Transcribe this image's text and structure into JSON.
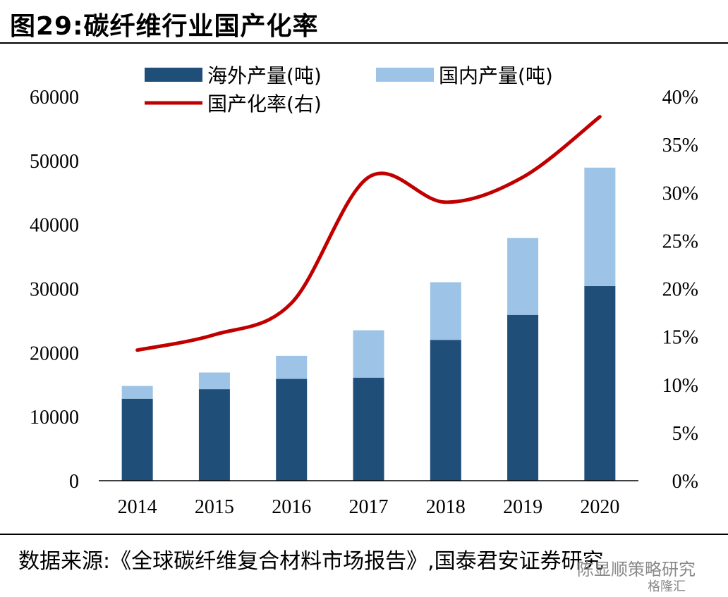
{
  "figure": {
    "title": "图29:碳纤维行业国产化率",
    "source": "数据来源:《全球碳纤维复合材料市场报告》,国泰君安证券研究"
  },
  "watermark": {
    "account": "陈显顺策略研究",
    "brand": "格隆汇"
  },
  "chart_data": {
    "type": "bar",
    "stacked": true,
    "categories": [
      "2014",
      "2015",
      "2016",
      "2017",
      "2018",
      "2019",
      "2020"
    ],
    "series": [
      {
        "name": "海外产量(吨)",
        "type": "bar",
        "axis": "left",
        "color": "#1f4e79",
        "values": [
          12800,
          14300,
          15900,
          16100,
          22000,
          25900,
          30400
        ]
      },
      {
        "name": "国内产量(吨)",
        "type": "bar",
        "axis": "left",
        "color": "#9dc3e6",
        "values": [
          2000,
          2600,
          3600,
          7400,
          9000,
          12000,
          18500
        ]
      },
      {
        "name": "国产化率(右)",
        "type": "line",
        "axis": "right",
        "color": "#c00000",
        "values": [
          0.136,
          0.152,
          0.185,
          0.316,
          0.29,
          0.316,
          0.379
        ]
      }
    ],
    "y_left": {
      "min": 0,
      "max": 60000,
      "step": 10000,
      "ticks": [
        "0",
        "10000",
        "20000",
        "30000",
        "40000",
        "50000",
        "60000"
      ]
    },
    "y_right": {
      "min": 0,
      "max": 0.4,
      "step": 0.05,
      "ticks": [
        "0%",
        "5%",
        "10%",
        "15%",
        "20%",
        "25%",
        "30%",
        "35%",
        "40%"
      ]
    },
    "grid": false,
    "legend_position": "top"
  }
}
